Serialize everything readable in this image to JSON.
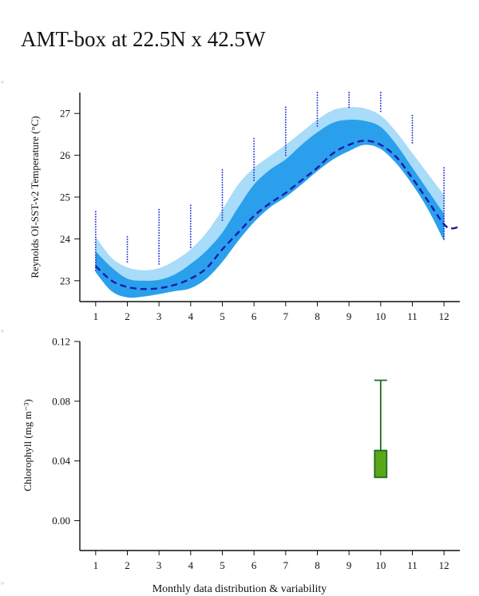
{
  "page": {
    "title": "AMT-box at 22.5N x 42.5W",
    "caption": "Monthly data distribution & variability"
  },
  "colors": {
    "outer_band": "#a8dcf8",
    "inner_band": "#2aa0ec",
    "mean_line": "#1a1aa8",
    "obs_points": "#2230d8",
    "box_fill": "#5aa818",
    "box_stroke": "#1e6e1e"
  },
  "chart_data": [
    {
      "type": "area",
      "ylabel": "Reynolds OI-SST-v2 Temperature (°C)",
      "xlim": [
        0.5,
        12.5
      ],
      "ylim": [
        22.5,
        27.5
      ],
      "x_ticks": [
        1,
        2,
        3,
        4,
        5,
        6,
        7,
        8,
        9,
        10,
        11,
        12
      ],
      "y_ticks": [
        23,
        24,
        25,
        26,
        27
      ],
      "series": [
        {
          "role": "outer_band",
          "x": [
            1,
            1.5,
            2,
            2.5,
            3,
            3.5,
            4,
            4.5,
            5,
            5.5,
            6,
            6.5,
            7,
            7.5,
            8,
            8.5,
            9,
            9.5,
            10,
            10.5,
            11,
            11.5,
            12
          ],
          "upper": [
            24.05,
            23.55,
            23.32,
            23.25,
            23.3,
            23.48,
            23.75,
            24.15,
            24.7,
            25.3,
            25.7,
            25.98,
            26.25,
            26.55,
            26.85,
            27.08,
            27.15,
            27.12,
            26.95,
            26.55,
            26.05,
            25.55,
            25.05
          ],
          "lower": [
            23.35,
            22.9,
            22.72,
            22.68,
            22.72,
            22.8,
            22.95,
            23.25,
            23.65,
            24.05,
            24.5,
            24.85,
            25.1,
            25.4,
            25.7,
            25.95,
            26.15,
            26.3,
            26.2,
            25.85,
            25.4,
            24.8,
            24.0
          ]
        },
        {
          "role": "inner_band",
          "x": [
            1,
            1.5,
            2,
            2.5,
            3,
            3.5,
            4,
            4.5,
            5,
            5.5,
            6,
            6.5,
            7,
            7.5,
            8,
            8.5,
            9,
            9.5,
            10,
            10.5,
            11,
            11.5,
            12
          ],
          "upper": [
            23.7,
            23.32,
            23.05,
            23.0,
            23.02,
            23.15,
            23.4,
            23.72,
            24.15,
            24.75,
            25.3,
            25.65,
            25.9,
            26.25,
            26.55,
            26.78,
            26.85,
            26.82,
            26.68,
            26.25,
            25.7,
            25.15,
            24.6
          ],
          "lower": [
            23.2,
            22.75,
            22.6,
            22.62,
            22.68,
            22.75,
            22.82,
            23.05,
            23.45,
            23.95,
            24.4,
            24.75,
            25.0,
            25.3,
            25.62,
            25.9,
            26.1,
            26.25,
            26.15,
            25.8,
            25.3,
            24.7,
            23.95
          ]
        },
        {
          "name": "",
          "role": "mean",
          "x": [
            1,
            1.5,
            2,
            2.5,
            3,
            3.5,
            4,
            4.5,
            5,
            5.5,
            6,
            6.5,
            7,
            7.5,
            8,
            8.5,
            9,
            9.5,
            10,
            10.5,
            11,
            11.5,
            12,
            12.25,
            12.5
          ],
          "y": [
            23.35,
            23.0,
            22.85,
            22.8,
            22.82,
            22.9,
            23.05,
            23.3,
            23.75,
            24.15,
            24.55,
            24.85,
            25.1,
            25.4,
            25.7,
            26.05,
            26.25,
            26.35,
            26.25,
            25.95,
            25.45,
            24.9,
            24.35,
            24.25,
            24.3
          ]
        }
      ],
      "observations": [
        {
          "month": 1,
          "y_min": 23.25,
          "y_max": 24.65
        },
        {
          "month": 2,
          "y_min": 23.45,
          "y_max": 24.05
        },
        {
          "month": 3,
          "y_min": 23.4,
          "y_max": 24.7
        },
        {
          "month": 4,
          "y_min": 23.8,
          "y_max": 24.8
        },
        {
          "month": 5,
          "y_min": 24.45,
          "y_max": 25.65
        },
        {
          "month": 6,
          "y_min": 25.4,
          "y_max": 26.4
        },
        {
          "month": 7,
          "y_min": 26.0,
          "y_max": 27.15
        },
        {
          "month": 8,
          "y_min": 26.7,
          "y_max": 27.5
        },
        {
          "month": 9,
          "y_min": 27.15,
          "y_max": 27.5
        },
        {
          "month": 10,
          "y_min": 27.05,
          "y_max": 27.5
        },
        {
          "month": 11,
          "y_min": 26.3,
          "y_max": 26.95
        },
        {
          "month": 12,
          "y_min": 24.0,
          "y_max": 25.7
        }
      ]
    },
    {
      "type": "box",
      "ylabel": "Chlorophyll (mg m⁻³)",
      "xlim": [
        0.5,
        12.5
      ],
      "ylim": [
        -0.02,
        0.12
      ],
      "x_ticks": [
        1,
        2,
        3,
        4,
        5,
        6,
        7,
        8,
        9,
        10,
        11,
        12
      ],
      "y_ticks": [
        0.12,
        0.08,
        0.04,
        0.0
      ],
      "y_tick_labels": [
        "0.12",
        "0.08",
        "0.04",
        "0.00"
      ],
      "boxes": [
        {
          "month": 10,
          "q1": 0.029,
          "q3": 0.047,
          "whisker_low": 0.029,
          "whisker_high": 0.094
        }
      ]
    }
  ]
}
